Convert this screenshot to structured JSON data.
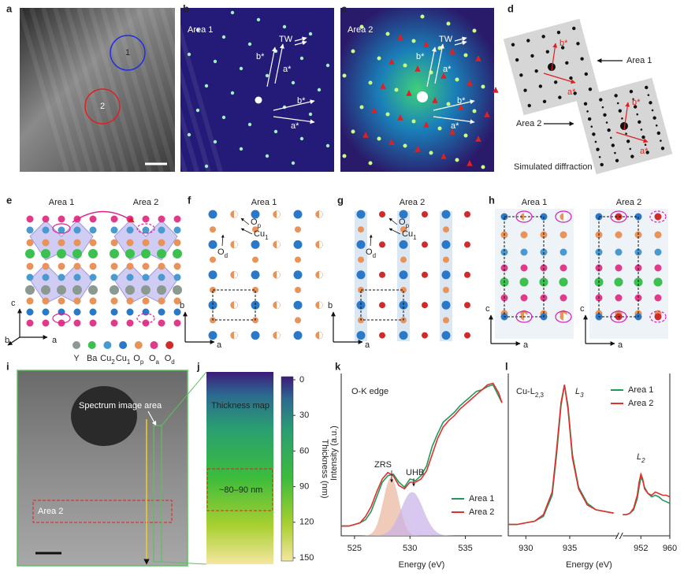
{
  "panels": {
    "a": {
      "label": "a",
      "regions": [
        "1",
        "2"
      ]
    },
    "b": {
      "label": "b",
      "area": "Area 1",
      "tw": "TW",
      "vectors": [
        "b*",
        "a*",
        "b*",
        "a*"
      ]
    },
    "c": {
      "label": "c",
      "area": "Area 2",
      "tw": "TW",
      "vectors": [
        "b*",
        "a*",
        "b*",
        "a*"
      ]
    },
    "d": {
      "label": "d",
      "areas": [
        "Area 1",
        "Area 2"
      ],
      "vectors": [
        "b*",
        "a*",
        "b*",
        "a*"
      ],
      "caption": "Simulated diffraction"
    },
    "e": {
      "label": "e",
      "areas": [
        "Area 1",
        "Area 2"
      ],
      "axes": [
        "c",
        "b",
        "a"
      ],
      "legend": [
        {
          "text": "Y"
        },
        {
          "text": "Ba"
        },
        {
          "text": "Cu",
          "sub": "2"
        },
        {
          "text": "Cu",
          "sub": "1"
        },
        {
          "text": "O",
          "sub": "p"
        },
        {
          "text": "O",
          "sub": "a"
        },
        {
          "text": "O",
          "sub": "d"
        }
      ]
    },
    "f": {
      "label": "f",
      "area": "Area 1",
      "sites": [
        {
          "text": "O",
          "sub": "p"
        },
        {
          "text": "Cu",
          "sub": "1"
        },
        {
          "text": "O",
          "sub": "d"
        }
      ],
      "axes": [
        "b",
        "a"
      ]
    },
    "g": {
      "label": "g",
      "area": "Area 2",
      "sites": [
        {
          "text": "O",
          "sub": "p"
        },
        {
          "text": "Cu",
          "sub": "1"
        },
        {
          "text": "O",
          "sub": "d"
        }
      ],
      "axes": [
        "b",
        "a"
      ]
    },
    "h": {
      "label": "h",
      "areas": [
        "Area 1",
        "Area 2"
      ],
      "axes": [
        "c",
        "a",
        "c",
        "a"
      ]
    },
    "i": {
      "label": "i",
      "region": "Spectrum image area",
      "area": "Area 2"
    },
    "j": {
      "label": "j",
      "title": "Thickness map",
      "region": "~80–90 nm",
      "colorbar": {
        "label": "Thickness (nm)",
        "lim": [
          0,
          150
        ],
        "ticks": [
          0,
          30,
          60,
          90,
          120,
          150
        ]
      }
    }
  },
  "chart_data": [
    {
      "label": "k",
      "type": "line",
      "title": "O-K edge",
      "ylabel": "Intensity (a.u.)",
      "xlabel": "Energy (eV)",
      "annotations": [
        "ZRS",
        "UHB"
      ],
      "xlim": [
        523.8,
        538.3
      ],
      "ylim": [
        0,
        1
      ],
      "xticks": [
        525,
        530,
        535
      ],
      "x": [
        523.8,
        524.5,
        525,
        525.5,
        526,
        526.5,
        527,
        527.5,
        528,
        528.5,
        529,
        529.5,
        530,
        530.5,
        531,
        531.5,
        532,
        532.5,
        533,
        533.5,
        534,
        534.5,
        535,
        535.5,
        536,
        536.5,
        537,
        537.5,
        538,
        538.3
      ],
      "series": [
        {
          "name": "Area 1",
          "color": "#1e9a5c",
          "values": [
            0.06,
            0.06,
            0.07,
            0.08,
            0.1,
            0.15,
            0.24,
            0.33,
            0.37,
            0.38,
            0.33,
            0.3,
            0.35,
            0.34,
            0.37,
            0.43,
            0.55,
            0.63,
            0.7,
            0.73,
            0.76,
            0.8,
            0.83,
            0.86,
            0.89,
            0.9,
            0.92,
            0.93,
            0.86,
            0.82
          ]
        },
        {
          "name": "Area 2",
          "color": "#e0302c",
          "values": [
            0.06,
            0.06,
            0.07,
            0.08,
            0.12,
            0.18,
            0.27,
            0.35,
            0.39,
            0.37,
            0.31,
            0.29,
            0.33,
            0.33,
            0.35,
            0.4,
            0.5,
            0.6,
            0.67,
            0.71,
            0.74,
            0.78,
            0.81,
            0.84,
            0.87,
            0.9,
            0.93,
            0.94,
            0.88,
            0.82
          ]
        }
      ],
      "fits": [
        {
          "center": 528.3,
          "height": 0.36,
          "sigma": 0.7,
          "color": "#eab59c"
        },
        {
          "center": 530.2,
          "height": 0.27,
          "sigma": 1.0,
          "color": "#c7b0ea"
        }
      ]
    },
    {
      "label": "l",
      "type": "line",
      "title": {
        "text": "Cu-L",
        "sub": "2,3"
      },
      "annotations": [
        {
          "text": "L",
          "sub": "3"
        },
        {
          "text": "L",
          "sub": "2"
        }
      ],
      "xlabel": "Energy (eV)",
      "xlim": [
        928,
        960
      ],
      "xbreak": [
        940.5,
        947
      ],
      "ylim": [
        0,
        1
      ],
      "xticks": [
        930,
        935,
        952,
        960
      ],
      "x": [
        928,
        929,
        930,
        931,
        932,
        933,
        933.5,
        934,
        934.4,
        934.8,
        935.3,
        936,
        937,
        938,
        940,
        943,
        947,
        948,
        949,
        950,
        951,
        951.5,
        952,
        952.5,
        953,
        954,
        955,
        956,
        957,
        958,
        959,
        960
      ],
      "series": [
        {
          "name": "Area 1",
          "color": "#1e9a5c",
          "values": [
            0.07,
            0.07,
            0.08,
            0.09,
            0.12,
            0.25,
            0.5,
            0.8,
            0.93,
            0.8,
            0.5,
            0.3,
            0.2,
            0.16,
            0.14,
            null,
            0.13,
            0.13,
            0.14,
            0.16,
            0.23,
            0.3,
            0.36,
            0.34,
            0.3,
            0.26,
            0.24,
            0.25,
            0.24,
            0.22,
            0.21,
            0.2
          ]
        },
        {
          "name": "Area 2",
          "color": "#e0302c",
          "values": [
            0.07,
            0.07,
            0.08,
            0.09,
            0.13,
            0.27,
            0.53,
            0.82,
            0.93,
            0.78,
            0.48,
            0.29,
            0.19,
            0.16,
            0.14,
            null,
            0.13,
            0.13,
            0.14,
            0.17,
            0.25,
            0.33,
            0.38,
            0.35,
            0.29,
            0.26,
            0.25,
            0.27,
            0.26,
            0.25,
            0.25,
            0.24
          ]
        }
      ]
    }
  ]
}
